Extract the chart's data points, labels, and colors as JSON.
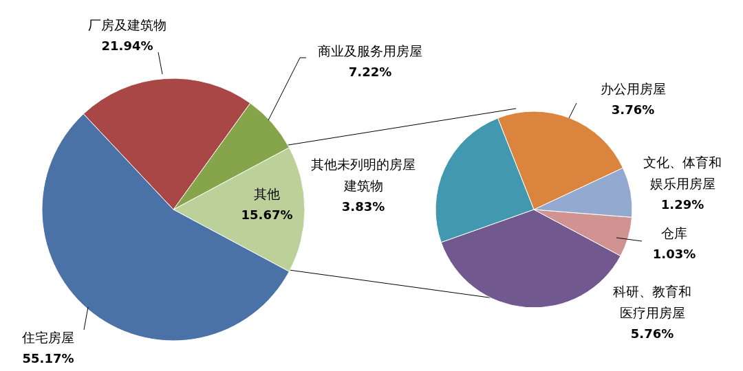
{
  "chart_data": [
    {
      "type": "pie",
      "categories": [
        "其他",
        "商业及服务用房屋",
        "厂房及建筑物",
        "住宅房屋"
      ],
      "values": [
        15.67,
        7.22,
        21.94,
        55.17
      ],
      "colors": [
        "#bcd199",
        "#86a44a",
        "#a84746",
        "#4a72a6"
      ],
      "value_labels": [
        "15.67%",
        "7.22%",
        "21.94%",
        "55.17%"
      ]
    },
    {
      "type": "pie",
      "categories": [
        "科研、教育和医疗用房屋",
        "仓库",
        "文化、体育和娱乐用房屋",
        "办公用房屋",
        "其他未列明的房屋建筑物"
      ],
      "values": [
        5.76,
        1.03,
        1.29,
        3.76,
        3.83
      ],
      "colors": [
        "#71588f",
        "#d09392",
        "#93a9d0",
        "#db843d",
        "#4198af"
      ],
      "value_labels": [
        "5.76%",
        "1.03%",
        "1.29%",
        "3.76%",
        "3.83%"
      ]
    }
  ]
}
